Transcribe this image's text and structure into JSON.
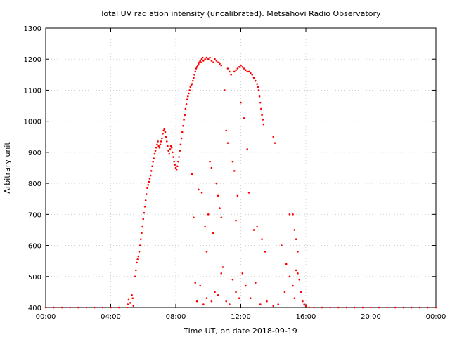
{
  "chart_data": {
    "type": "scatter",
    "title": "Total UV radiation intensity (uncalibrated). Metsähovi Radio Observatory",
    "xlabel": "Time UT, on date 2018-09-19",
    "ylabel": "Arbitrary unit",
    "xlim": [
      0,
      24
    ],
    "ylim": [
      400,
      1300
    ],
    "x_ticks": [
      {
        "value": 0,
        "label": "00:00"
      },
      {
        "value": 4,
        "label": "04:00"
      },
      {
        "value": 8,
        "label": "08:00"
      },
      {
        "value": 12,
        "label": "12:00"
      },
      {
        "value": 16,
        "label": "16:00"
      },
      {
        "value": 20,
        "label": "20:00"
      },
      {
        "value": 24,
        "label": "00:00"
      }
    ],
    "y_ticks": [
      {
        "value": 400,
        "label": "400"
      },
      {
        "value": 500,
        "label": "500"
      },
      {
        "value": 600,
        "label": "600"
      },
      {
        "value": 700,
        "label": "700"
      },
      {
        "value": 800,
        "label": "800"
      },
      {
        "value": 900,
        "label": "900"
      },
      {
        "value": 1000,
        "label": "1000"
      },
      {
        "value": 1100,
        "label": "1100"
      },
      {
        "value": 1200,
        "label": "1200"
      },
      {
        "value": 1300,
        "label": "1300"
      }
    ],
    "grid": true,
    "color": "#ff0000",
    "series": [
      {
        "points": [
          [
            0.0,
            400
          ],
          [
            0.5,
            400
          ],
          [
            1.0,
            400
          ],
          [
            1.5,
            400
          ],
          [
            2.0,
            400
          ],
          [
            2.5,
            400
          ],
          [
            3.0,
            400
          ],
          [
            3.5,
            400
          ],
          [
            4.0,
            400
          ],
          [
            4.5,
            400
          ],
          [
            5.0,
            400
          ],
          [
            5.05,
            410
          ],
          [
            5.1,
            425
          ],
          [
            5.2,
            415
          ],
          [
            5.3,
            440
          ],
          [
            5.35,
            430
          ],
          [
            5.4,
            405
          ],
          [
            5.5,
            500
          ],
          [
            5.55,
            520
          ],
          [
            5.6,
            545
          ],
          [
            5.65,
            555
          ],
          [
            5.7,
            565
          ],
          [
            5.75,
            580
          ],
          [
            5.8,
            600
          ],
          [
            5.85,
            620
          ],
          [
            5.9,
            640
          ],
          [
            5.95,
            660
          ],
          [
            6.0,
            685
          ],
          [
            6.05,
            705
          ],
          [
            6.1,
            725
          ],
          [
            6.15,
            745
          ],
          [
            6.2,
            765
          ],
          [
            6.25,
            785
          ],
          [
            6.3,
            795
          ],
          [
            6.35,
            805
          ],
          [
            6.4,
            815
          ],
          [
            6.45,
            825
          ],
          [
            6.5,
            840
          ],
          [
            6.55,
            855
          ],
          [
            6.6,
            870
          ],
          [
            6.65,
            880
          ],
          [
            6.7,
            895
          ],
          [
            6.75,
            905
          ],
          [
            6.8,
            915
          ],
          [
            6.85,
            925
          ],
          [
            6.9,
            935
          ],
          [
            6.95,
            920
          ],
          [
            7.0,
            915
          ],
          [
            7.05,
            925
          ],
          [
            7.1,
            935
          ],
          [
            7.15,
            945
          ],
          [
            7.2,
            960
          ],
          [
            7.25,
            970
          ],
          [
            7.3,
            975
          ],
          [
            7.35,
            965
          ],
          [
            7.4,
            950
          ],
          [
            7.45,
            935
          ],
          [
            7.5,
            920
          ],
          [
            7.55,
            905
          ],
          [
            7.6,
            895
          ],
          [
            7.65,
            910
          ],
          [
            7.7,
            920
          ],
          [
            7.75,
            915
          ],
          [
            7.8,
            900
          ],
          [
            7.85,
            885
          ],
          [
            7.9,
            870
          ],
          [
            7.95,
            860
          ],
          [
            8.0,
            850
          ],
          [
            8.05,
            845
          ],
          [
            8.1,
            855
          ],
          [
            8.15,
            870
          ],
          [
            8.2,
            885
          ],
          [
            8.25,
            905
          ],
          [
            8.3,
            925
          ],
          [
            8.35,
            945
          ],
          [
            8.4,
            965
          ],
          [
            8.45,
            985
          ],
          [
            8.5,
            1005
          ],
          [
            8.55,
            1020
          ],
          [
            8.6,
            1040
          ],
          [
            8.65,
            1055
          ],
          [
            8.7,
            1070
          ],
          [
            8.75,
            1080
          ],
          [
            8.8,
            1090
          ],
          [
            8.85,
            1100
          ],
          [
            8.9,
            1110
          ],
          [
            8.95,
            1115
          ],
          [
            9.0,
            1120
          ],
          [
            9.05,
            1130
          ],
          [
            9.1,
            1140
          ],
          [
            9.15,
            1150
          ],
          [
            9.2,
            1160
          ],
          [
            9.25,
            1170
          ],
          [
            9.3,
            1175
          ],
          [
            9.35,
            1180
          ],
          [
            9.4,
            1185
          ],
          [
            9.45,
            1190
          ],
          [
            9.5,
            1195
          ],
          [
            9.55,
            1190
          ],
          [
            9.6,
            1200
          ],
          [
            9.65,
            1205
          ],
          [
            9.7,
            1195
          ],
          [
            9.8,
            1200
          ],
          [
            9.9,
            1205
          ],
          [
            10.0,
            1200
          ],
          [
            10.1,
            1205
          ],
          [
            10.2,
            1195
          ],
          [
            10.3,
            1190
          ],
          [
            10.4,
            1200
          ],
          [
            10.5,
            1195
          ],
          [
            10.6,
            1190
          ],
          [
            10.7,
            1185
          ],
          [
            10.8,
            1180
          ],
          [
            11.2,
            1170
          ],
          [
            11.3,
            1160
          ],
          [
            11.4,
            1150
          ],
          [
            11.6,
            1160
          ],
          [
            11.7,
            1165
          ],
          [
            11.8,
            1170
          ],
          [
            11.9,
            1175
          ],
          [
            12.0,
            1180
          ],
          [
            12.1,
            1175
          ],
          [
            12.2,
            1170
          ],
          [
            12.3,
            1165
          ],
          [
            12.4,
            1160
          ],
          [
            12.5,
            1160
          ],
          [
            12.6,
            1155
          ],
          [
            12.7,
            1150
          ],
          [
            12.8,
            1140
          ],
          [
            12.9,
            1130
          ],
          [
            13.0,
            1120
          ],
          [
            13.05,
            1110
          ],
          [
            13.1,
            1100
          ],
          [
            13.15,
            1080
          ],
          [
            13.2,
            1060
          ],
          [
            13.25,
            1040
          ],
          [
            13.3,
            1020
          ],
          [
            13.35,
            1005
          ],
          [
            13.4,
            990
          ],
          [
            9.0,
            830
          ],
          [
            9.1,
            690
          ],
          [
            9.4,
            780
          ],
          [
            9.6,
            770
          ],
          [
            9.8,
            660
          ],
          [
            9.9,
            580
          ],
          [
            10.0,
            700
          ],
          [
            10.1,
            870
          ],
          [
            10.2,
            850
          ],
          [
            10.3,
            640
          ],
          [
            10.5,
            800
          ],
          [
            10.6,
            760
          ],
          [
            10.7,
            720
          ],
          [
            10.8,
            690
          ],
          [
            11.0,
            1100
          ],
          [
            11.1,
            970
          ],
          [
            11.2,
            930
          ],
          [
            11.5,
            870
          ],
          [
            11.6,
            840
          ],
          [
            11.7,
            680
          ],
          [
            11.8,
            760
          ],
          [
            12.0,
            1060
          ],
          [
            12.2,
            1010
          ],
          [
            12.4,
            910
          ],
          [
            12.5,
            770
          ],
          [
            12.8,
            650
          ],
          [
            13.0,
            660
          ],
          [
            13.3,
            620
          ],
          [
            13.5,
            580
          ],
          [
            14.0,
            950
          ],
          [
            14.1,
            930
          ],
          [
            14.5,
            600
          ],
          [
            14.8,
            540
          ],
          [
            15.0,
            700
          ],
          [
            15.2,
            700
          ],
          [
            15.3,
            650
          ],
          [
            15.4,
            620
          ],
          [
            15.5,
            580
          ],
          [
            9.2,
            480
          ],
          [
            9.3,
            420
          ],
          [
            9.5,
            470
          ],
          [
            9.7,
            410
          ],
          [
            9.9,
            430
          ],
          [
            10.2,
            420
          ],
          [
            10.4,
            450
          ],
          [
            10.6,
            440
          ],
          [
            10.8,
            510
          ],
          [
            10.9,
            530
          ],
          [
            11.1,
            420
          ],
          [
            11.3,
            410
          ],
          [
            11.5,
            490
          ],
          [
            11.7,
            450
          ],
          [
            11.9,
            430
          ],
          [
            12.1,
            510
          ],
          [
            12.3,
            470
          ],
          [
            12.6,
            430
          ],
          [
            12.9,
            480
          ],
          [
            13.2,
            410
          ],
          [
            13.6,
            420
          ],
          [
            14.0,
            405
          ],
          [
            14.3,
            410
          ],
          [
            14.7,
            450
          ],
          [
            15.0,
            500
          ],
          [
            15.2,
            470
          ],
          [
            15.3,
            430
          ],
          [
            15.4,
            520
          ],
          [
            15.5,
            510
          ],
          [
            15.6,
            490
          ],
          [
            15.7,
            450
          ],
          [
            15.8,
            420
          ],
          [
            15.9,
            410
          ],
          [
            16.0,
            405
          ],
          [
            16.2,
            400
          ],
          [
            16.5,
            400
          ],
          [
            17.0,
            400
          ],
          [
            17.5,
            400
          ],
          [
            18.0,
            400
          ],
          [
            18.5,
            400
          ],
          [
            19.0,
            400
          ],
          [
            19.5,
            400
          ],
          [
            20.0,
            400
          ],
          [
            20.5,
            400
          ],
          [
            21.0,
            400
          ],
          [
            21.5,
            400
          ],
          [
            22.0,
            400
          ],
          [
            22.5,
            400
          ],
          [
            23.0,
            400
          ],
          [
            23.5,
            400
          ],
          [
            24.0,
            400
          ]
        ]
      }
    ]
  }
}
